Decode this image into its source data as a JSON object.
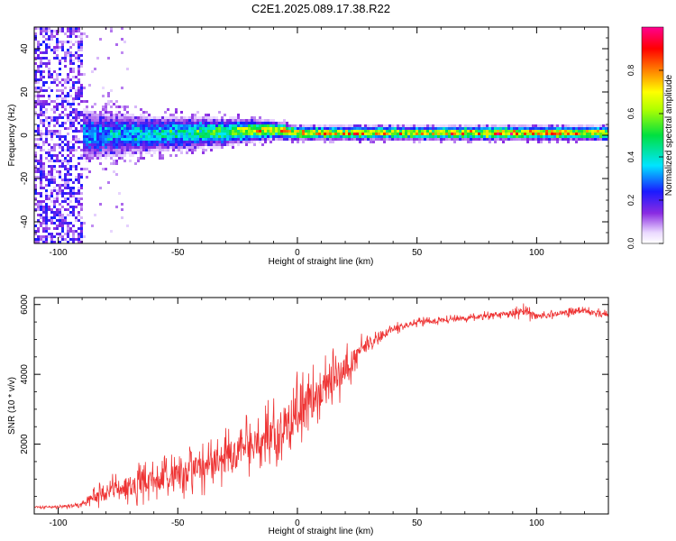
{
  "title": "C2E1.2025.089.17.38.R22",
  "colors": {
    "snr_line": "#ee3333",
    "axis": "#000000",
    "background": "#ffffff"
  },
  "chart_data": [
    {
      "type": "heatmap",
      "title": "C2E1.2025.089.17.38.R22",
      "xlabel": "Height of straight line (km)",
      "ylabel": "Frequency (Hz)",
      "xlim": [
        -110,
        130
      ],
      "ylim": [
        -50,
        50
      ],
      "x_ticks": [
        -100,
        -50,
        0,
        50,
        100
      ],
      "x_tick_labels": [
        "-100",
        "-50",
        "0",
        "50",
        "100"
      ],
      "y_ticks": [
        -40,
        -20,
        0,
        20,
        40
      ],
      "y_tick_labels": [
        "-40",
        "-20",
        "0",
        "20",
        "40"
      ],
      "colorbar": {
        "label": "Normalized spectral amplitude",
        "range": [
          0,
          1
        ],
        "ticks": [
          0.0,
          0.2,
          0.4,
          0.6,
          0.8
        ],
        "tick_labels": [
          "0.0",
          "0.2",
          "0.4",
          "0.6",
          "0.8"
        ],
        "colormap": "rainbow (white-violet-blue-cyan-green-yellow-red-magenta)"
      },
      "ridge": [
        {
          "x": -110,
          "freq": 0.0,
          "spread": 50,
          "amp": 0.2
        },
        {
          "x": -90,
          "freq": 0.0,
          "spread": 6,
          "amp": 0.3
        },
        {
          "x": -60,
          "freq": 0.5,
          "spread": 4,
          "amp": 0.4
        },
        {
          "x": -30,
          "freq": 1.5,
          "spread": 3,
          "amp": 0.55
        },
        {
          "x": -10,
          "freq": 2.5,
          "spread": 2,
          "amp": 0.75
        },
        {
          "x": 0,
          "freq": 1.0,
          "spread": 1.5,
          "amp": 0.8
        },
        {
          "x": 50,
          "freq": 1.0,
          "spread": 1.5,
          "amp": 0.75
        },
        {
          "x": 90,
          "freq": 1.0,
          "spread": 1.5,
          "amp": 0.85
        },
        {
          "x": 130,
          "freq": 1.0,
          "spread": 1.5,
          "amp": 0.8
        }
      ]
    },
    {
      "type": "line",
      "xlabel": "Height of straight line (km)",
      "ylabel": "SNR (10 * v/v)",
      "xlim": [
        -110,
        130
      ],
      "ylim": [
        0,
        6200
      ],
      "x_ticks": [
        -100,
        -50,
        0,
        50,
        100
      ],
      "x_tick_labels": [
        "-100",
        "-50",
        "0",
        "50",
        "100"
      ],
      "y_ticks": [
        2000,
        4000,
        6000
      ],
      "y_tick_labels": [
        "2000",
        "4000",
        "6000"
      ],
      "series": [
        {
          "x": [
            -110,
            -100,
            -92,
            -88,
            -80,
            -70,
            -60,
            -50,
            -40,
            -30,
            -20,
            -10,
            0,
            10,
            20,
            30,
            40,
            50,
            60,
            70,
            80,
            90,
            95,
            100,
            110,
            120,
            130
          ],
          "y": [
            200,
            200,
            250,
            400,
            600,
            800,
            950,
            1100,
            1300,
            1600,
            1900,
            2300,
            2900,
            3500,
            4200,
            4900,
            5300,
            5500,
            5550,
            5600,
            5700,
            5750,
            5800,
            5650,
            5750,
            5800,
            5700
          ],
          "noise": [
            60,
            60,
            80,
            200,
            500,
            600,
            650,
            700,
            800,
            900,
            1000,
            1100,
            1200,
            1100,
            800,
            400,
            200,
            150,
            130,
            130,
            140,
            160,
            250,
            180,
            150,
            150,
            150
          ]
        }
      ]
    }
  ]
}
